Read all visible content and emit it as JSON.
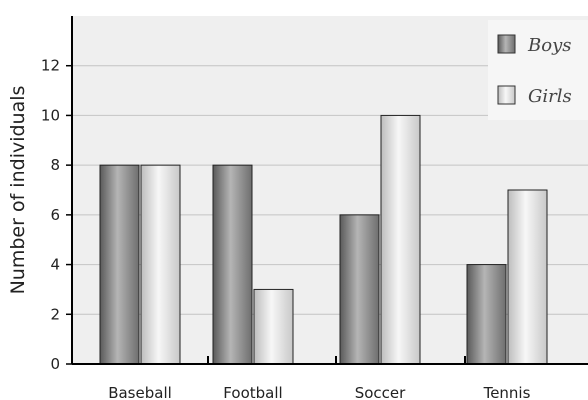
{
  "chart_data": {
    "type": "bar",
    "title": "",
    "xlabel": "",
    "ylabel": "Number of individuals",
    "categories": [
      "Baseball",
      "Football",
      "Soccer",
      "Tennis"
    ],
    "series": [
      {
        "name": "Boys",
        "values": [
          8,
          8,
          6,
          4
        ],
        "color": "#8a8a8a"
      },
      {
        "name": "Girls",
        "values": [
          8,
          3,
          10,
          7
        ],
        "color": "#dcdcdc"
      }
    ],
    "ylim": [
      0,
      14
    ],
    "yticks": [
      0,
      2,
      4,
      6,
      8,
      10,
      12
    ],
    "grid": true,
    "legend": "top-right",
    "plot_background": "#efefef"
  }
}
